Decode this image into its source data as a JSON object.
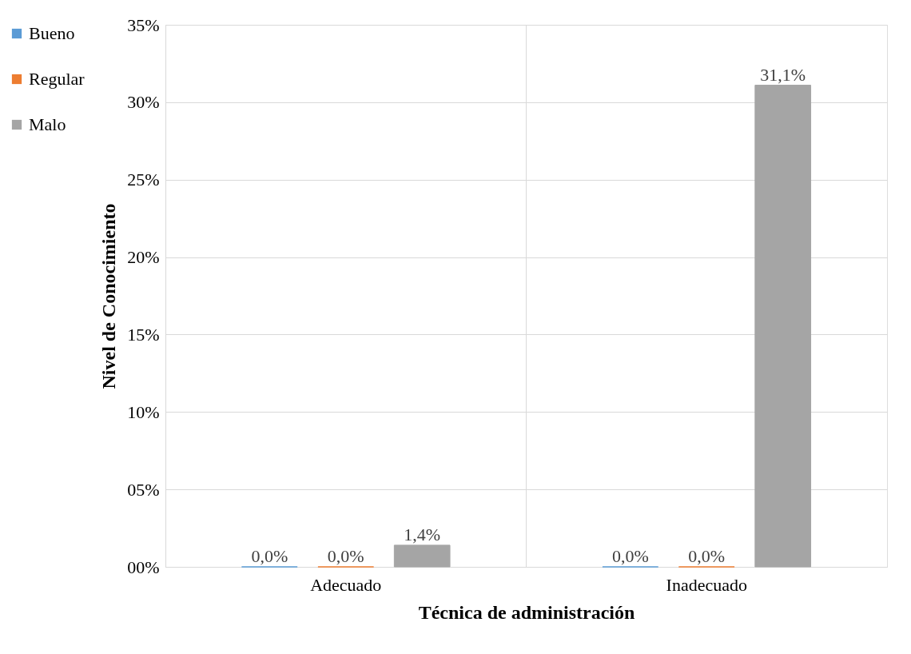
{
  "chart_data": {
    "type": "bar",
    "categories": [
      "Adecuado",
      "Inadecuado"
    ],
    "xlabel": "Técnica de administración",
    "ylabel": "Nivel de Conocimiento",
    "series": [
      {
        "name": "Bueno",
        "color": "#5b9bd5",
        "values": [
          0.0,
          0.0
        ],
        "value_labels": [
          "0,0%",
          "0,0%"
        ]
      },
      {
        "name": "Regular",
        "color": "#ed7d31",
        "values": [
          0.0,
          0.0
        ],
        "value_labels": [
          "0,0%",
          "0,0%"
        ]
      },
      {
        "name": "Malo",
        "color": "#a5a5a5",
        "values": [
          1.4,
          31.1
        ],
        "value_labels": [
          "1,4%",
          "31,1%"
        ]
      }
    ],
    "ylim": [
      0,
      35
    ],
    "yticks": [
      {
        "value": 0,
        "label": "00%"
      },
      {
        "value": 5,
        "label": "05%"
      },
      {
        "value": 10,
        "label": "10%"
      },
      {
        "value": 15,
        "label": "15%"
      },
      {
        "value": 20,
        "label": "20%"
      },
      {
        "value": 25,
        "label": "25%"
      },
      {
        "value": 30,
        "label": "30%"
      },
      {
        "value": 35,
        "label": "35%"
      }
    ],
    "grid": true,
    "legend": "left"
  }
}
